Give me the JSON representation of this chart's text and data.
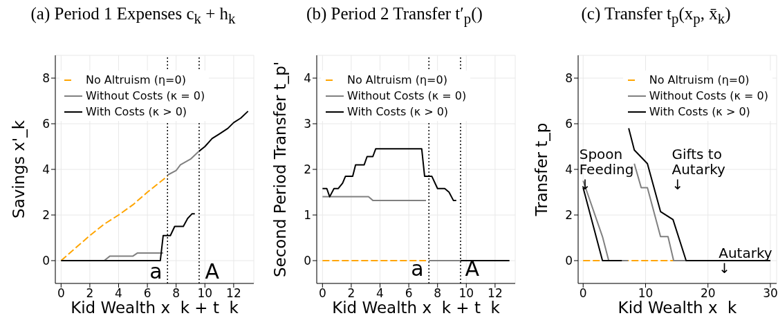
{
  "chart_data": [
    {
      "type": "line",
      "title": "(a) Period 1 Expenses c$_{k}$ + h$_{k}$",
      "xlabel": "Kid Wealth x  k + t  k",
      "ylabel": "Savings x'_k",
      "xlim": [
        -0.4,
        13.4
      ],
      "xticks": [
        0,
        2,
        4,
        6,
        8,
        10,
        12
      ],
      "ylim": [
        -1,
        9
      ],
      "yticks": [
        0,
        2,
        4,
        6,
        8
      ],
      "grid": true,
      "legend": "top left",
      "series": [
        {
          "name": "No Altruism (η=0)",
          "color": "#ffa500",
          "line_style": "dashed",
          "x": [
            0,
            1,
            2,
            3,
            4,
            5,
            6,
            7.4
          ],
          "values": [
            0,
            0.55,
            1.1,
            1.6,
            2.0,
            2.45,
            3.0,
            3.7
          ]
        },
        {
          "name": "Without Costs (κ = 0)",
          "color": "#808080",
          "line_style": "solid",
          "x": [
            3,
            3.4,
            5,
            5.3,
            7.1,
            7.2,
            7.4,
            8,
            8.3,
            9,
            9.6
          ],
          "values": [
            0,
            0.2,
            0.2,
            0.33,
            0.33,
            null,
            3.75,
            3.95,
            4.2,
            4.45,
            4.8
          ]
        },
        {
          "name": "With Costs (κ > 0)",
          "color": "#000000",
          "line_style": "solid",
          "x": [
            0,
            6.9,
            7.1,
            7.6,
            7.9,
            8.5,
            8.8,
            9.1,
            9.3,
            9.45,
            9.6,
            10,
            10.5,
            11,
            11.6,
            12,
            12.5,
            13
          ],
          "values": [
            0,
            0,
            1.1,
            1.1,
            1.5,
            1.5,
            1.85,
            2.05,
            2.05,
            null,
            4.8,
            5.0,
            5.35,
            5.55,
            5.8,
            6.05,
            6.25,
            6.55
          ]
        }
      ],
      "ref_lines": [
        {
          "axis": "x",
          "value": 7.4,
          "color": "#000000",
          "line_style": "dotted"
        },
        {
          "axis": "x",
          "value": 9.6,
          "color": "#000000",
          "line_style": "dotted"
        }
      ],
      "annotations": [
        "a",
        "A"
      ]
    },
    {
      "type": "line",
      "title": "(b) Period 2 Transfer t′$_{p}$()",
      "xlabel": "Kid Wealth x  k + t  k",
      "ylabel": "Second Period Transfer t_p'",
      "xlim": [
        -0.4,
        13.4
      ],
      "xticks": [
        0,
        2,
        4,
        6,
        8,
        10,
        12
      ],
      "ylim": [
        -0.5,
        4.5
      ],
      "yticks": [
        0,
        1,
        2,
        3,
        4
      ],
      "grid": true,
      "legend": "top left",
      "series": [
        {
          "name": "No Altruism (η=0)",
          "color": "#ffa500",
          "line_style": "dashed",
          "x": [
            0,
            7.2
          ],
          "values": [
            0,
            0
          ]
        },
        {
          "name": "Without Costs (κ = 0)",
          "color": "#808080",
          "line_style": "solid",
          "x": [
            0,
            3.2,
            3.5,
            7.2,
            7.3,
            7.4,
            9.6
          ],
          "values": [
            1.4,
            1.4,
            1.32,
            1.32,
            null,
            0,
            0
          ]
        },
        {
          "name": "With Costs (κ > 0)",
          "color": "#000000",
          "line_style": "solid",
          "x": [
            0,
            0.3,
            0.5,
            0.8,
            1.1,
            1.4,
            1.6,
            2.1,
            2.3,
            2.9,
            3.1,
            3.5,
            3.7,
            6.9,
            7.1,
            7.6,
            8,
            8.5,
            8.8,
            9.1,
            9.3,
            9.45,
            9.6,
            13
          ],
          "values": [
            1.58,
            1.58,
            1.4,
            1.58,
            1.58,
            1.7,
            1.85,
            1.85,
            2.1,
            2.1,
            2.28,
            2.28,
            2.45,
            2.45,
            1.85,
            1.85,
            1.58,
            1.58,
            1.5,
            1.32,
            1.32,
            null,
            0,
            0
          ]
        }
      ],
      "ref_lines": [
        {
          "axis": "x",
          "value": 7.4,
          "color": "#000000",
          "line_style": "dotted"
        },
        {
          "axis": "x",
          "value": 9.6,
          "color": "#000000",
          "line_style": "dotted"
        }
      ],
      "annotations": [
        "a",
        "A"
      ]
    },
    {
      "type": "line",
      "title": "(c) Transfer t$_{p}$(x$_{p}$, x̄$_{k}$)",
      "xlabel": "Kid Wealth x  k",
      "ylabel": "Transfer t_p",
      "xlim": [
        -0.8,
        31
      ],
      "xticks": [
        0,
        10,
        20,
        30
      ],
      "ylim": [
        -1,
        9
      ],
      "yticks": [
        0,
        2,
        4,
        6,
        8
      ],
      "grid": true,
      "legend": "top right",
      "series": [
        {
          "name": "No Altruism (η=0)",
          "color": "#ffa500",
          "line_style": "dashed",
          "x": [
            0,
            14.5
          ],
          "values": [
            0,
            0
          ]
        },
        {
          "name": "Without Costs (κ = 0)",
          "color": "#808080",
          "line_style": "solid",
          "x": [
            0,
            3.1,
            4.1,
            7.2,
            7.7,
            8.2,
            9.3,
            10.3,
            12.4,
            13.6,
            14.5,
            16.5
          ],
          "values": [
            3.5,
            1.05,
            0,
            0,
            null,
            4.25,
            3.2,
            3.2,
            1.05,
            1.05,
            0,
            0
          ]
        },
        {
          "name": "With Costs (κ > 0)",
          "color": "#000000",
          "line_style": "solid",
          "x": [
            0,
            3.1,
            6.2,
            6.8,
            7.3,
            8.2,
            10.3,
            12.4,
            14.4,
            16.5,
            30
          ],
          "values": [
            3.2,
            0,
            0,
            null,
            5.8,
            4.85,
            4.25,
            2.15,
            1.8,
            0,
            0
          ]
        }
      ],
      "annotations": [
        "Spoon\nFeeding\n↓",
        "Gifts to\nAutarky\n↓",
        "Autarky\n↓"
      ]
    }
  ]
}
